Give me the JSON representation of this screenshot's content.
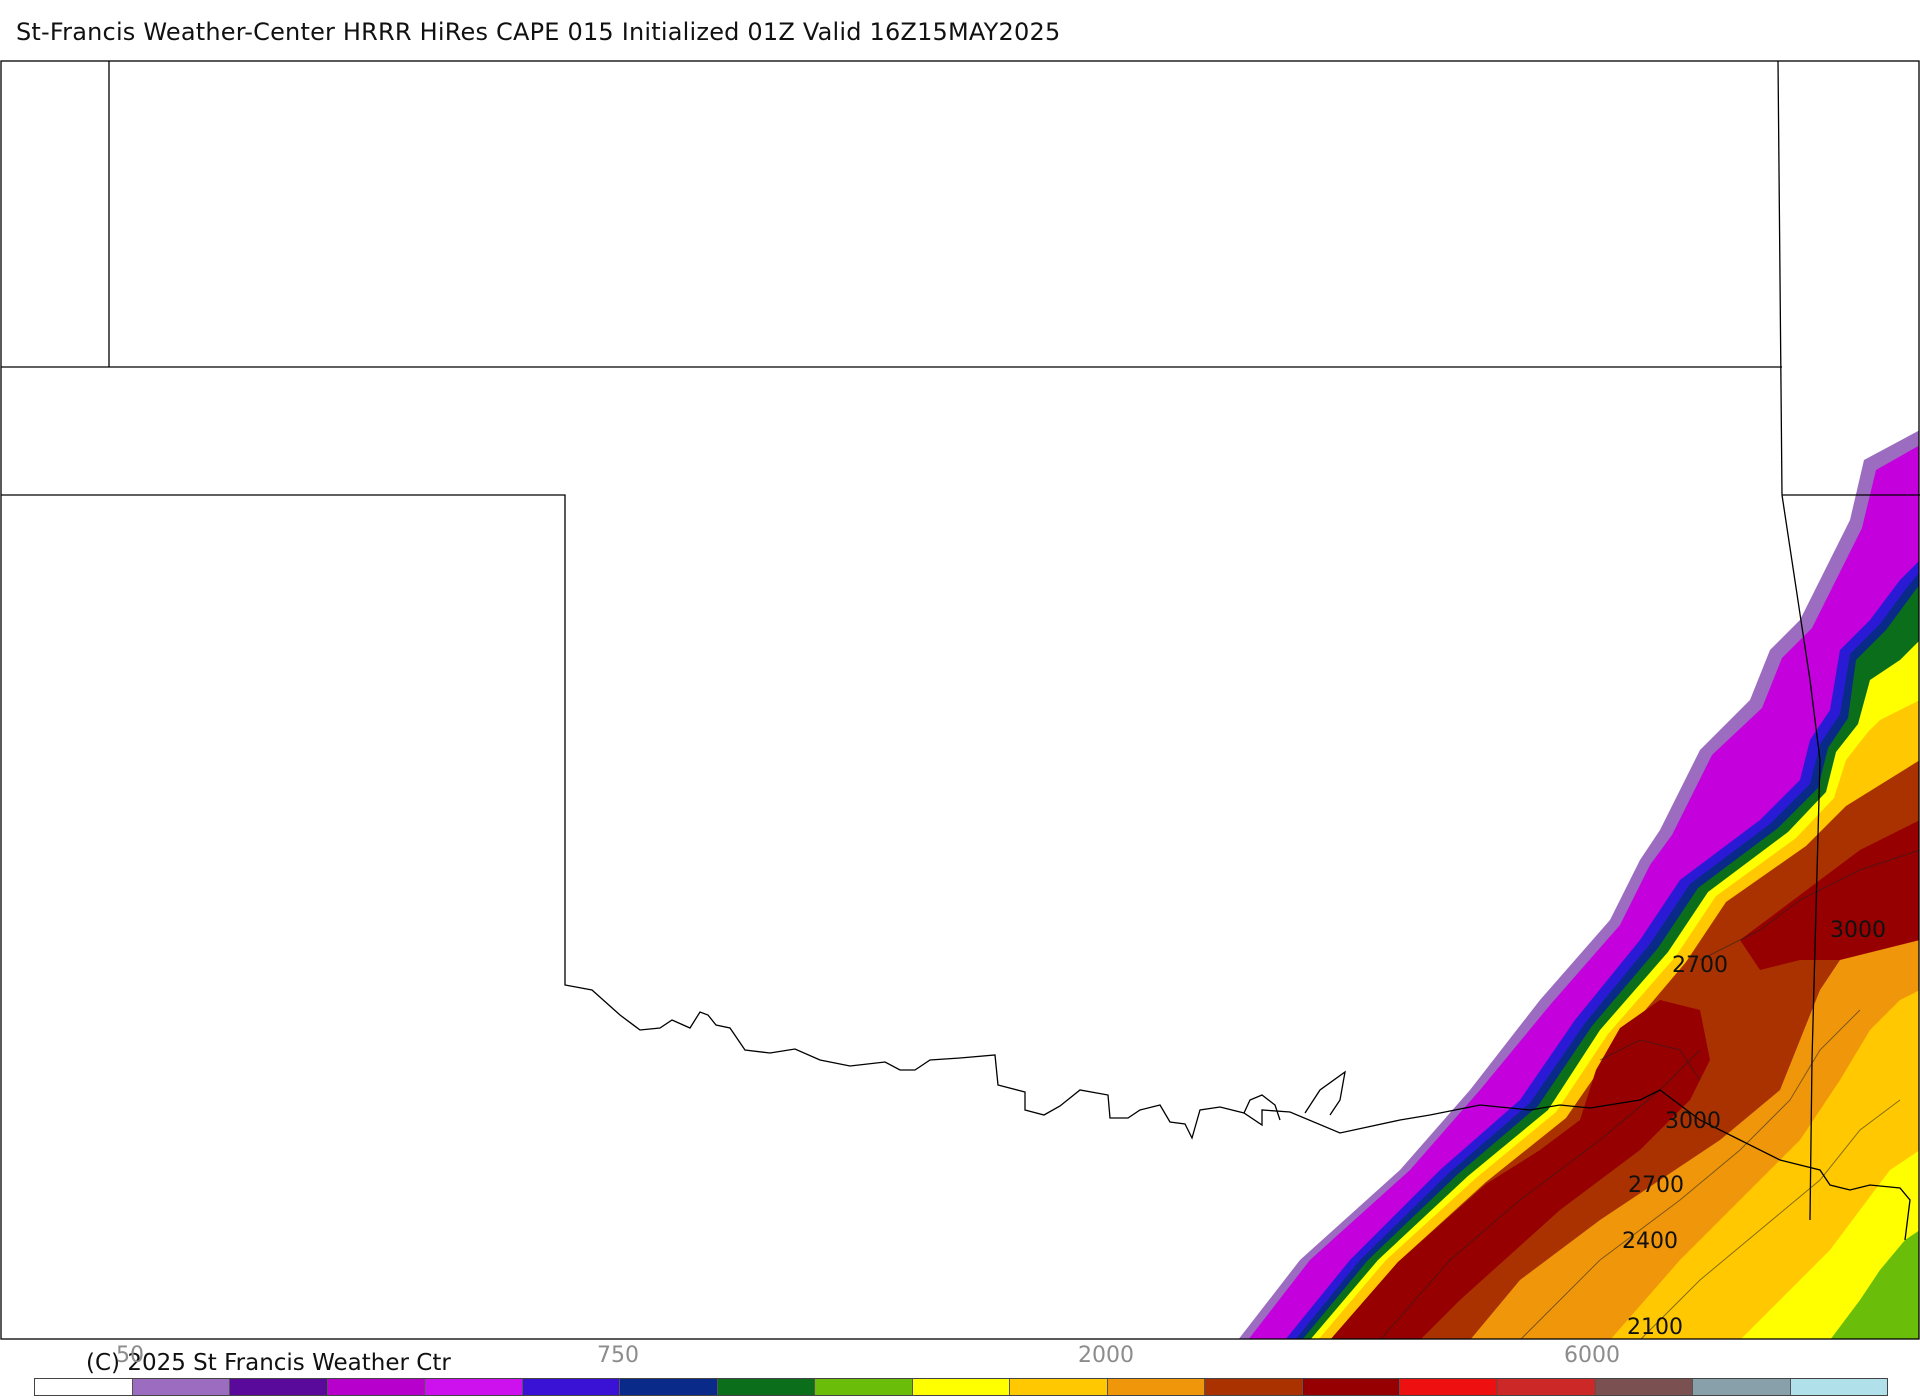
{
  "header": {
    "title": "St-Francis Weather-Center HRRR HiRes CAPE  015 Initialized  01Z Valid 16Z15MAY2025"
  },
  "footer": {
    "copyright": "(C) 2025 St Francis Weather Ctr"
  },
  "colorbar": {
    "tick_labels": [
      "50",
      "750",
      "2000",
      "6000"
    ],
    "colors": [
      "#ffffff",
      "#9b6cbf",
      "#5a0a9a",
      "#b800cc",
      "#cc10ee",
      "#3a12d6",
      "#0a2a8a",
      "#0a6e1a",
      "#6abe0a",
      "#ffff00",
      "#ffc800",
      "#f0960a",
      "#aa3200",
      "#960000",
      "#ee1010",
      "#cc2828",
      "#7a5050",
      "#88a0aa",
      "#b0e0ea"
    ]
  },
  "map": {
    "contour_labels": [
      "3000",
      "2700",
      "3000",
      "2700",
      "2400",
      "2100"
    ],
    "field_colors": {
      "outer": "#9b6cbf",
      "dark_purple": "#5a0a9a",
      "magenta": "#c400dd",
      "blue": "#2a1ad6",
      "navy": "#0a2a8a",
      "green": "#0a6e1a",
      "lime": "#6abe0a",
      "yellow": "#ffff00",
      "gold": "#ffc800",
      "orange": "#f0960a",
      "rust": "#aa3200",
      "darkred": "#960000",
      "gray": "#7a5050"
    }
  }
}
